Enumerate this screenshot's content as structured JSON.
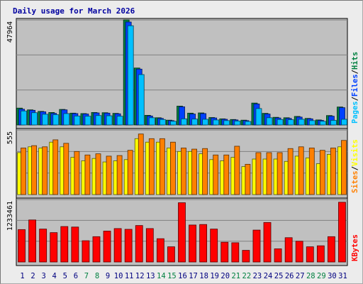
{
  "chart_data": {
    "type": "bar",
    "title": "Daily usage for March 2026",
    "x": [
      1,
      2,
      3,
      4,
      5,
      6,
      7,
      8,
      9,
      10,
      11,
      12,
      13,
      14,
      15,
      16,
      17,
      18,
      19,
      20,
      21,
      22,
      23,
      24,
      25,
      26,
      27,
      28,
      29,
      30,
      31
    ],
    "weekend_days": [
      7,
      8,
      14,
      15,
      21,
      22,
      28,
      29
    ],
    "panels": [
      {
        "name": "hits-files-pages",
        "ytick": "47964",
        "ymax": 47964,
        "legend": [
          {
            "label": "Pages",
            "color": "#00c0ff"
          },
          {
            "label": "/",
            "color": "#000000"
          },
          {
            "label": "Files",
            "color": "#0040ff"
          },
          {
            "label": "/",
            "color": "#000000"
          },
          {
            "label": "Hits",
            "color": "#008040"
          }
        ],
        "series": [
          {
            "name": "Hits",
            "color": "#008040",
            "values": [
              7700,
              6900,
              6200,
              5700,
              7100,
              5400,
              5200,
              5700,
              5600,
              5300,
              47964,
              26000,
              4400,
              3300,
              2200,
              8600,
              5400,
              5500,
              3400,
              2800,
              2500,
              2200,
              10000,
              5300,
              3500,
              3300,
              3900,
              3000,
              2300,
              4300,
              8200
            ]
          },
          {
            "name": "Files",
            "color": "#0040ff",
            "values": [
              7200,
              6700,
              6000,
              5300,
              6900,
              5200,
              5000,
              5500,
              5400,
              5100,
              47000,
              25500,
              4100,
              3000,
              2000,
              8300,
              5000,
              5200,
              3200,
              2600,
              2300,
              2000,
              9600,
              5000,
              3200,
              3000,
              3600,
              2800,
              2100,
              4000,
              7900
            ]
          },
          {
            "name": "Pages",
            "color": "#00c0ff",
            "values": [
              6400,
              5600,
              4900,
              4700,
              5200,
              4100,
              4000,
              4300,
              4200,
              4000,
              45300,
              23000,
              3300,
              2500,
              1700,
              2800,
              2700,
              2600,
              2300,
              2000,
              1800,
              1600,
              7500,
              3300,
              2500,
              2400,
              2600,
              2000,
              1700,
              2100,
              2600
            ]
          }
        ]
      },
      {
        "name": "visits-sites",
        "ytick": "555",
        "ymax": 555,
        "legend": [
          {
            "label": "Sites",
            "color": "#ff8000"
          },
          {
            "label": "/",
            "color": "#000000"
          },
          {
            "label": "Visits",
            "color": "#ffff00"
          }
        ],
        "series": [
          {
            "name": "Visits",
            "color": "#ffff00",
            "values": [
              360,
              410,
              400,
              450,
              410,
              320,
              290,
              310,
              280,
              290,
              300,
              480,
              450,
              450,
              400,
              370,
              370,
              350,
              300,
              290,
              320,
              240,
              305,
              305,
              305,
              285,
              330,
              315,
              265,
              345,
              410
            ]
          },
          {
            "name": "Sites",
            "color": "#ff8000",
            "values": [
              400,
              420,
              410,
              470,
              440,
              370,
              340,
              350,
              330,
              335,
              380,
              520,
              480,
              480,
              450,
              400,
              390,
              395,
              340,
              340,
              415,
              260,
              360,
              360,
              360,
              395,
              410,
              400,
              380,
              400,
              465
            ]
          }
        ]
      },
      {
        "name": "kbytes",
        "ytick": "1233461",
        "ymax": 1233461,
        "legend": [
          {
            "label": "KBytes",
            "color": "#ff0000"
          }
        ],
        "series": [
          {
            "name": "KBytes",
            "color": "#ff0000",
            "values": [
              640000,
              830000,
              650000,
              580000,
              700000,
              690000,
              420000,
              500000,
              610000,
              660000,
              645000,
              720000,
              660000,
              460000,
              300000,
              1170000,
              730000,
              740000,
              650000,
              390000,
              380000,
              230000,
              630000,
              780000,
              260000,
              480000,
              410000,
              300000,
              320000,
              500000,
              1180000
            ]
          }
        ]
      }
    ]
  }
}
